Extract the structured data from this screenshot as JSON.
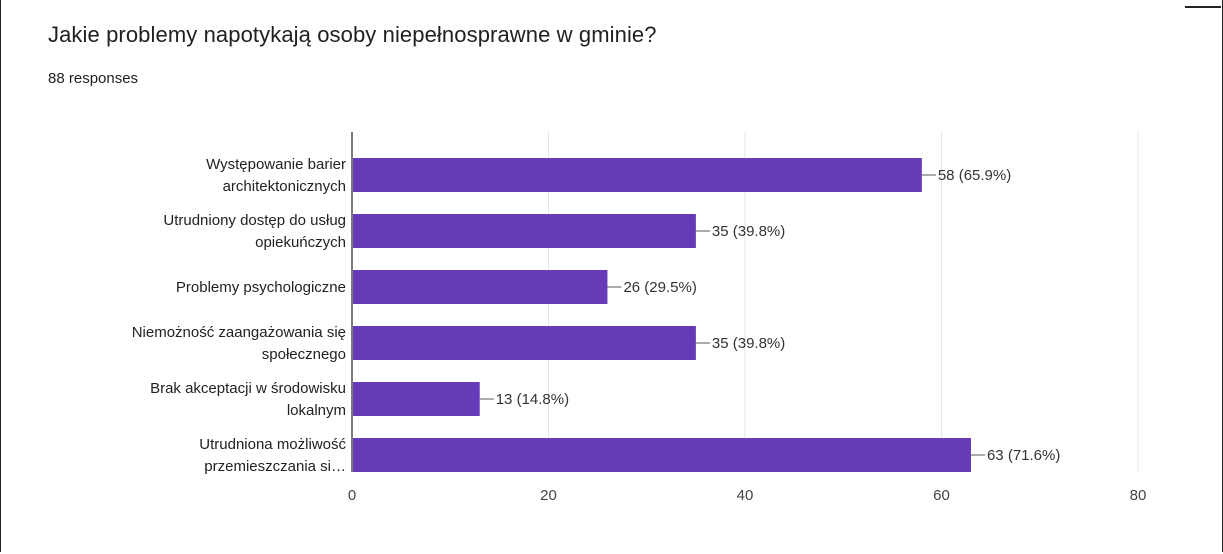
{
  "page": {
    "title": "Jakie problemy napotykają osoby niepełnosprawne w gminie?",
    "responses": "88 responses"
  },
  "colors": {
    "bar": "#673ab7",
    "grid": "#e6e6e6",
    "axis": "#333333"
  },
  "chart_data": {
    "type": "bar",
    "orientation": "horizontal",
    "title": "Jakie problemy napotykają osoby niepełnosprawne w gminie?",
    "categories": [
      [
        "Występowanie barier",
        "architektonicznych"
      ],
      [
        "Utrudniony dostęp do usług",
        "opiekuńczych"
      ],
      [
        "Problemy psychologiczne"
      ],
      [
        "Niemożność zaangażowania się",
        "społecznego"
      ],
      [
        "Brak akceptacji w środowisku",
        "lokalnym"
      ],
      [
        "Utrudniona możliwość",
        "przemieszczania si…"
      ]
    ],
    "values": [
      58,
      35,
      26,
      35,
      13,
      63
    ],
    "data_labels": [
      "58 (65.9%)",
      "35 (39.8%)",
      "26 (29.5%)",
      "35 (39.8%)",
      "13 (14.8%)",
      "63 (71.6%)"
    ],
    "xlim": [
      0,
      80
    ],
    "xticks": [
      "0",
      "20",
      "40",
      "60",
      "80"
    ],
    "grid": true,
    "legend": "none"
  }
}
